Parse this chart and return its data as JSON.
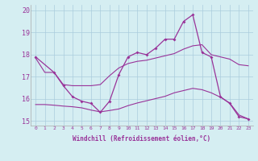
{
  "curve_main_x": [
    0,
    2,
    3,
    4,
    5,
    6,
    7,
    8,
    9,
    10,
    11,
    12,
    13,
    14,
    15,
    16,
    17,
    18,
    19,
    20,
    21,
    22,
    23
  ],
  "curve_main_y": [
    17.9,
    17.2,
    16.6,
    16.1,
    15.9,
    15.8,
    15.4,
    15.9,
    17.1,
    17.9,
    18.1,
    18.0,
    18.3,
    18.7,
    18.7,
    19.5,
    19.8,
    18.1,
    17.9,
    16.1,
    15.8,
    15.2,
    15.1
  ],
  "curve_upper_x": [
    0,
    1,
    2,
    3,
    4,
    5,
    6,
    7,
    8,
    9,
    10,
    11,
    12,
    13,
    14,
    15,
    16,
    17,
    18,
    19,
    20,
    21,
    22,
    23
  ],
  "curve_upper_y": [
    17.85,
    17.2,
    17.2,
    16.65,
    16.6,
    16.6,
    16.6,
    16.65,
    17.05,
    17.4,
    17.6,
    17.7,
    17.75,
    17.85,
    17.95,
    18.05,
    18.25,
    18.4,
    18.45,
    18.0,
    17.9,
    17.8,
    17.55,
    17.5
  ],
  "curve_lower_x": [
    0,
    1,
    2,
    3,
    4,
    5,
    6,
    7,
    8,
    9,
    10,
    11,
    12,
    13,
    14,
    15,
    16,
    17,
    18,
    19,
    20,
    21,
    22,
    23
  ],
  "curve_lower_y": [
    15.75,
    15.75,
    15.72,
    15.68,
    15.65,
    15.6,
    15.5,
    15.42,
    15.48,
    15.55,
    15.7,
    15.82,
    15.92,
    16.02,
    16.12,
    16.28,
    16.38,
    16.48,
    16.42,
    16.28,
    16.08,
    15.82,
    15.28,
    15.1
  ],
  "color": "#993399",
  "bgcolor": "#d5eef2",
  "grid_color": "#aaccdd",
  "ylim": [
    14.8,
    20.25
  ],
  "yticks": [
    15,
    16,
    17,
    18,
    19,
    20
  ],
  "xlabel": "Windchill (Refroidissement éolien,°C)",
  "xlabel_color": "#993399",
  "figsize": [
    3.2,
    2.0
  ],
  "dpi": 100
}
